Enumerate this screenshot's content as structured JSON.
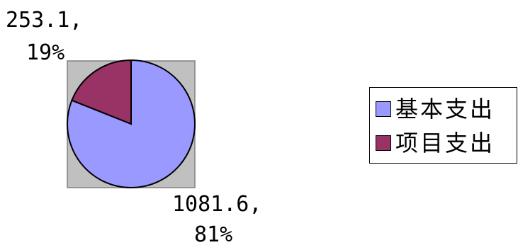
{
  "chart_data": {
    "type": "pie",
    "title": "",
    "slices": [
      {
        "label": "基本支出",
        "value": 1081.6,
        "percent": "81%",
        "value_text": "1081.6,",
        "color": "#9999FF"
      },
      {
        "label": "项目支出",
        "value": 253.1,
        "percent": "19%",
        "value_text": "253.1,",
        "color": "#993366"
      }
    ],
    "plot_area_color": "#C0C0C0",
    "legend": {
      "position": "right"
    }
  }
}
